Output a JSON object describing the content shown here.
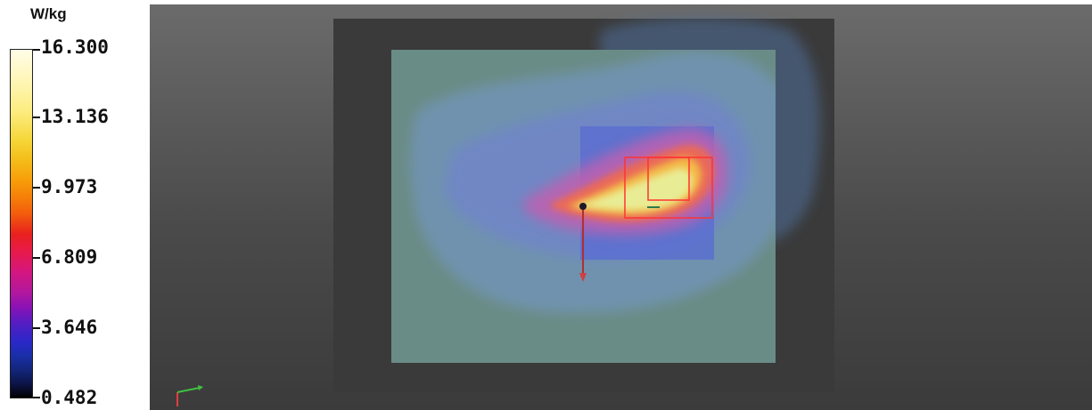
{
  "legend": {
    "unit": "W/kg",
    "ticks": [
      {
        "label": "16.300",
        "value": 16.3
      },
      {
        "label": "13.136",
        "value": 13.136
      },
      {
        "label": "9.973",
        "value": 9.973
      },
      {
        "label": "6.809",
        "value": 6.809
      },
      {
        "label": "3.646",
        "value": 3.646
      },
      {
        "label": "0.482",
        "value": 0.482
      }
    ],
    "min": 0.482,
    "max": 16.3
  },
  "colors": {
    "viewport_bg_top": "#6b6b6b",
    "viewport_bg_bottom": "#3b3b3b",
    "phantom": "#6a8c86",
    "highlight_box": "#ff3333"
  },
  "icons": {
    "axes": "axes-triad-icon",
    "probe": "probe-marker-icon"
  }
}
